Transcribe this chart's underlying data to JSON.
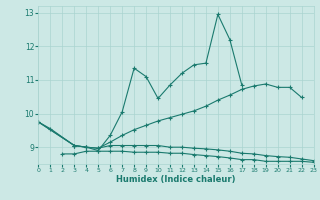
{
  "xlabel": "Humidex (Indice chaleur)",
  "xlim": [
    0,
    23
  ],
  "ylim": [
    8.5,
    13.2
  ],
  "yticks": [
    9,
    10,
    11,
    12,
    13
  ],
  "xticks": [
    0,
    1,
    2,
    3,
    4,
    5,
    6,
    7,
    8,
    9,
    10,
    11,
    12,
    13,
    14,
    15,
    16,
    17,
    18,
    19,
    20,
    21,
    22,
    23
  ],
  "bg_color": "#cce8e5",
  "grid_color": "#aad4d0",
  "line_color": "#1a7a6e",
  "line1_x": [
    0,
    1,
    3,
    4,
    5,
    6,
    7,
    8,
    9,
    10,
    11,
    12,
    13,
    14,
    15,
    16,
    17
  ],
  "line1_y": [
    9.75,
    9.55,
    9.05,
    9.0,
    8.9,
    9.35,
    10.05,
    11.35,
    11.1,
    10.45,
    10.85,
    11.2,
    11.45,
    11.5,
    12.95,
    12.2,
    10.85
  ],
  "line2_x": [
    0,
    3,
    4,
    5,
    6,
    7,
    8,
    9,
    10,
    11,
    12,
    13,
    14,
    15,
    16,
    17,
    18,
    19,
    20,
    21,
    22
  ],
  "line2_y": [
    9.75,
    9.05,
    9.0,
    8.97,
    9.15,
    9.35,
    9.52,
    9.65,
    9.78,
    9.88,
    9.98,
    10.08,
    10.22,
    10.4,
    10.55,
    10.72,
    10.82,
    10.88,
    10.78,
    10.78,
    10.48
  ],
  "line3_x": [
    0,
    3,
    4,
    5,
    6,
    7,
    8,
    9,
    10,
    11,
    12,
    13,
    14,
    15,
    16,
    17,
    18,
    19,
    20,
    21,
    22,
    23
  ],
  "line3_y": [
    9.75,
    9.05,
    9.0,
    8.97,
    9.05,
    9.05,
    9.05,
    9.05,
    9.05,
    9.0,
    9.0,
    8.97,
    8.95,
    8.92,
    8.88,
    8.82,
    8.8,
    8.75,
    8.72,
    8.7,
    8.65,
    8.6
  ],
  "line4_x": [
    2,
    3,
    4,
    5,
    6,
    7,
    8,
    9,
    10,
    11,
    12,
    13,
    14,
    15,
    16,
    17,
    18,
    19,
    20,
    21,
    22,
    23
  ],
  "line4_y": [
    8.8,
    8.8,
    8.88,
    8.88,
    8.88,
    8.88,
    8.85,
    8.85,
    8.85,
    8.82,
    8.82,
    8.78,
    8.75,
    8.72,
    8.68,
    8.63,
    8.63,
    8.58,
    8.58,
    8.58,
    8.58,
    8.55
  ]
}
